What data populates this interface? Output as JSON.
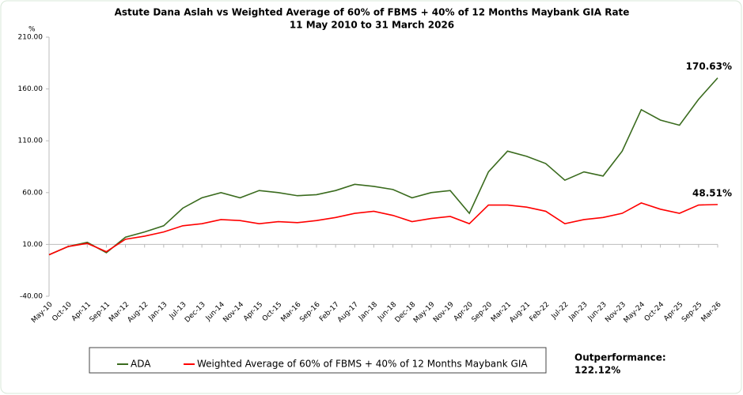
{
  "chart_data": {
    "type": "line",
    "title": "Astute Dana Aslah vs Weighted Average of 60% of FBMS + 40% of 12 Months Maybank GIA Rate",
    "subtitle": "11 May 2010 to 31 March 2026",
    "y_label": "%",
    "categories": [
      "May-10",
      "Oct-10",
      "Apr-11",
      "Sep-11",
      "Mar-12",
      "Aug-12",
      "Jan-13",
      "Jul-13",
      "Dec-13",
      "Jun-14",
      "Nov-14",
      "Apr-15",
      "Oct-15",
      "Mar-16",
      "Sep-16",
      "Feb-17",
      "Aug-17",
      "Jan-18",
      "Jun-18",
      "Dec-18",
      "May-19",
      "Nov-19",
      "Apr-20",
      "Sep-20",
      "Mar-21",
      "Aug-21",
      "Feb-22",
      "Jul-22",
      "Jan-23",
      "Jun-23",
      "Nov-23",
      "May-24",
      "Oct-24",
      "Apr-25",
      "Sep-25",
      "Mar-26"
    ],
    "series": [
      {
        "name": "ADA",
        "color": "#3a6b1e",
        "values": [
          0,
          8,
          12,
          2,
          17,
          22,
          28,
          45,
          55,
          60,
          55,
          62,
          60,
          57,
          58,
          62,
          68,
          66,
          63,
          55,
          60,
          62,
          40,
          80,
          100,
          95,
          88,
          72,
          80,
          76,
          100,
          140,
          130,
          125,
          150,
          170.63
        ]
      },
      {
        "name": "Weighted Average of 60% of FBMS + 40% of 12 Months Maybank GIA",
        "color": "#ff0000",
        "values": [
          0,
          8,
          11,
          3,
          15,
          18,
          22,
          28,
          30,
          34,
          33,
          30,
          32,
          31,
          33,
          36,
          40,
          42,
          38,
          32,
          35,
          37,
          30,
          48,
          48,
          46,
          42,
          30,
          34,
          36,
          40,
          50,
          44,
          40,
          48,
          48.51
        ]
      }
    ],
    "ylim": [
      -40,
      210
    ],
    "yticks": [
      {
        "value": -40,
        "label": "-40.00"
      },
      {
        "value": 10,
        "label": "10.00"
      },
      {
        "value": 60,
        "label": "60.00"
      },
      {
        "value": 110,
        "label": "110.00"
      },
      {
        "value": 160,
        "label": "160.00"
      },
      {
        "value": 210,
        "label": "210.00"
      }
    ],
    "annotations": [
      "170.63%",
      "48.51%"
    ],
    "outperformance": [
      "Outperformance:",
      "122.12%"
    ],
    "legend": "bottom"
  }
}
